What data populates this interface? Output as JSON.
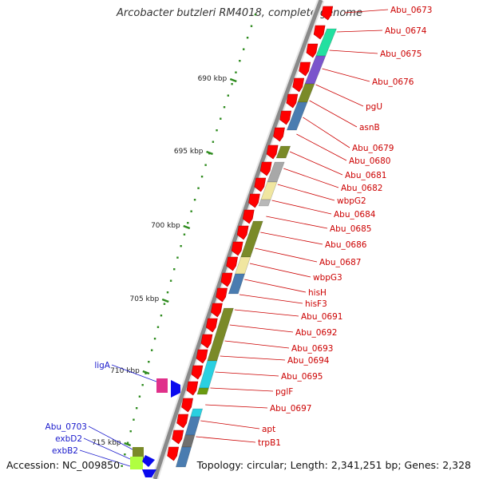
{
  "title": "Arcobacter butzleri RM4018, complete genome",
  "footer": {
    "accession": "Accession: NC_009850",
    "summary": "Topology: circular; Length: 2,341,251 bp; Genes: 2,328"
  },
  "colors": {
    "background": "#ffffff",
    "backbone": "#8a8a8a",
    "gene_arrow": "#ff0000",
    "right_label": "#cc0000",
    "left_label": "#1a1acc",
    "tick": "#2e8b1e"
  },
  "ticks": [
    {
      "label": "690 kbp"
    },
    {
      "label": "695 kbp"
    },
    {
      "label": "700 kbp"
    },
    {
      "label": "705 kbp"
    },
    {
      "label": "710 kbp"
    },
    {
      "label": "715 kbp"
    }
  ],
  "right_genes": [
    {
      "label": "Abu_0673"
    },
    {
      "label": "Abu_0674"
    },
    {
      "label": "Abu_0675"
    },
    {
      "label": "Abu_0676"
    },
    {
      "label": "pgU"
    },
    {
      "label": "asnB"
    },
    {
      "label": "Abu_0679"
    },
    {
      "label": "Abu_0680"
    },
    {
      "label": "Abu_0681"
    },
    {
      "label": "Abu_0682"
    },
    {
      "label": "wbpG2"
    },
    {
      "label": "Abu_0684"
    },
    {
      "label": "Abu_0685"
    },
    {
      "label": "Abu_0686"
    },
    {
      "label": "Abu_0687"
    },
    {
      "label": "wbpG3"
    },
    {
      "label": "hisH"
    },
    {
      "label": "hisF3"
    },
    {
      "label": "Abu_0691"
    },
    {
      "label": "Abu_0692"
    },
    {
      "label": "Abu_0693"
    },
    {
      "label": "Abu_0694"
    },
    {
      "label": "Abu_0695"
    },
    {
      "label": "pglF"
    },
    {
      "label": "Abu_0697"
    },
    {
      "label": "apt"
    },
    {
      "label": "trpB1"
    }
  ],
  "left_genes": [
    {
      "label": "ligA"
    },
    {
      "label": "Abu_0703"
    },
    {
      "label": "exbD2"
    },
    {
      "label": "exbB2"
    }
  ]
}
